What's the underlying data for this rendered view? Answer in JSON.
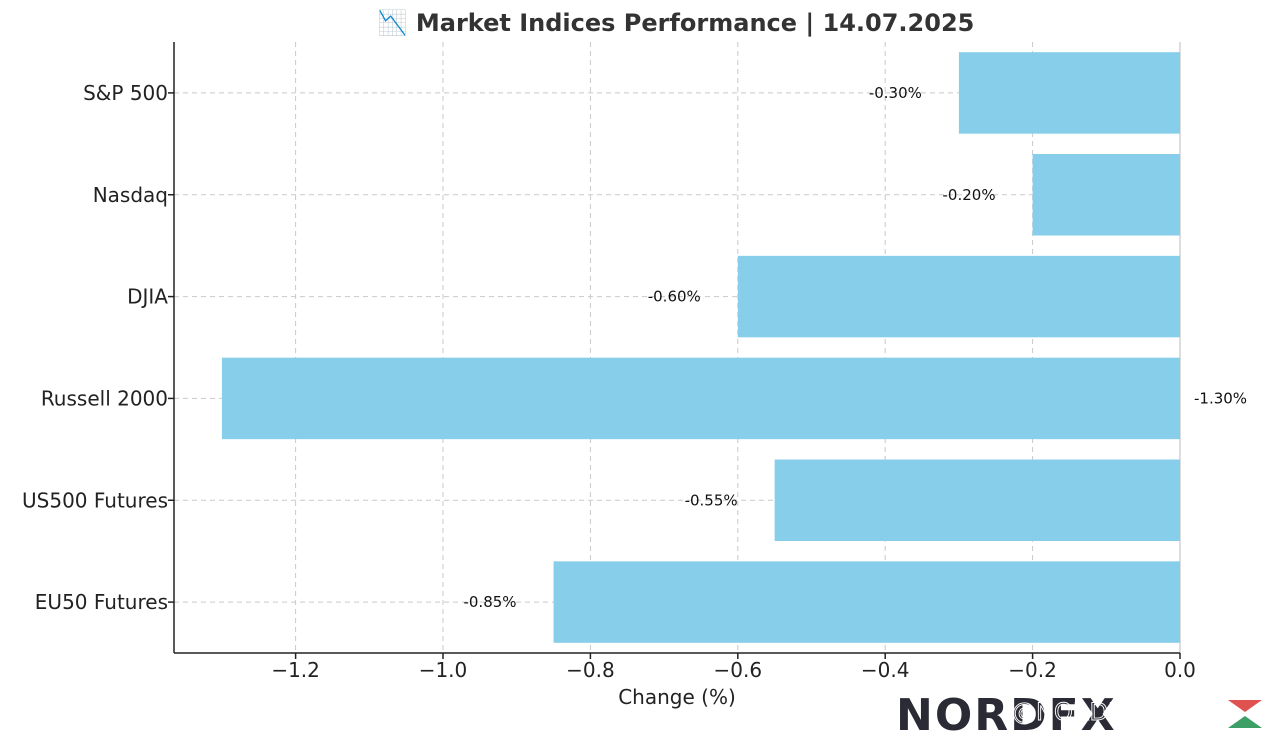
{
  "chart_data": {
    "type": "bar",
    "orientation": "horizontal",
    "title": "📉 Market Indices Performance | 14.07.2025",
    "xlabel": "Change (%)",
    "ylabel": "",
    "categories": [
      "S&P 500",
      "Nasdaq",
      "DJIA",
      "Russell 2000",
      "US500 Futures",
      "EU50 Futures"
    ],
    "values": [
      -0.3,
      -0.2,
      -0.6,
      -1.3,
      -0.55,
      -0.85
    ],
    "data_labels": [
      "-0.30%",
      "-0.20%",
      "-0.60%",
      "-1.30%",
      "-0.55%",
      "-0.85%"
    ],
    "xlim": [
      -1.365,
      0.0
    ],
    "xticks": [
      -1.2,
      -1.0,
      -0.8,
      -0.6,
      -0.4,
      -0.2,
      0.0
    ],
    "xtick_labels": [
      "−1.2",
      "−1.0",
      "−0.8",
      "−0.6",
      "−0.4",
      "−0.2",
      "0.0"
    ],
    "grid": true,
    "bar_color": "#87ceeb"
  },
  "watermark": {
    "logo": "NORDFX",
    "handle": "@NORDFX Global"
  }
}
